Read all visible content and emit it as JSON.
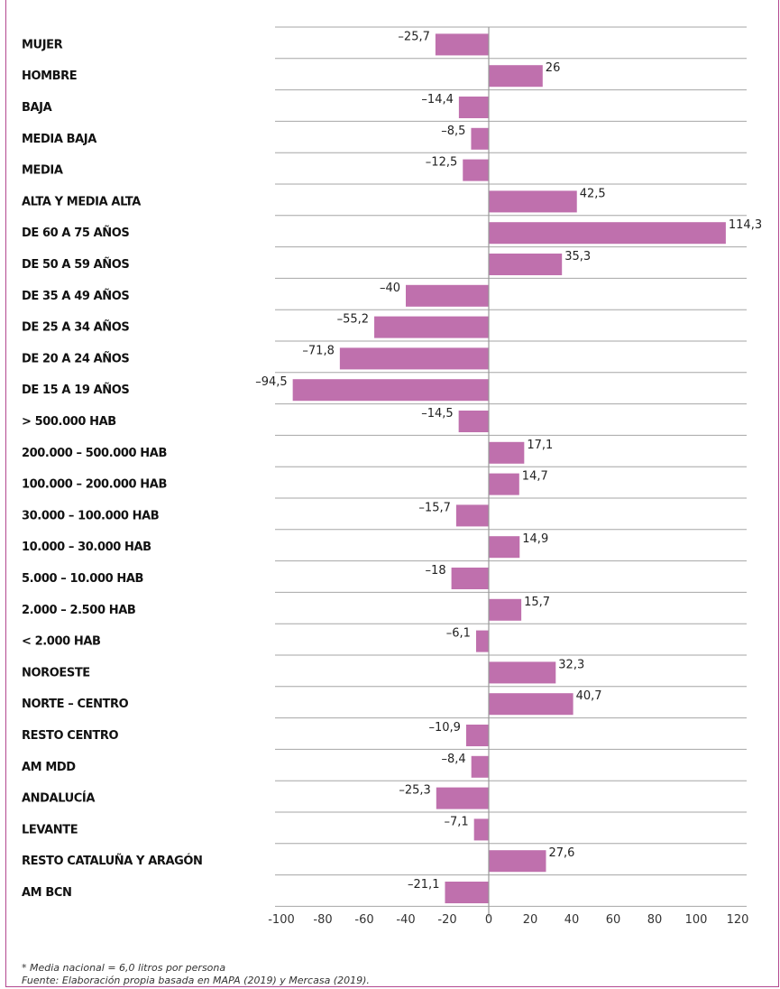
{
  "chart_data": {
    "type": "bar",
    "orientation": "horizontal",
    "categories": [
      "MUJER",
      "HOMBRE",
      "BAJA",
      "MEDIA BAJA",
      "MEDIA",
      "ALTA Y MEDIA ALTA",
      "DE 60 A 75 AÑOS",
      "DE 50 A 59 AÑOS",
      "DE 35 A 49 AÑOS",
      "DE 25 A 34 AÑOS",
      "DE 20 A 24 AÑOS",
      "DE 15 A 19 AÑOS",
      "> 500.000 HAB",
      "200.000 – 500.000 HAB",
      "100.000 – 200.000 HAB",
      "30.000 – 100.000 HAB",
      "10.000 – 30.000 HAB",
      "5.000 – 10.000 HAB",
      "2.000 – 2.500 HAB",
      "< 2.000 HAB",
      "NOROESTE",
      "NORTE – CENTRO",
      "RESTO CENTRO",
      "AM MDD",
      "ANDALUCÍA",
      "LEVANTE",
      "RESTO CATALUÑA Y ARAGÓN",
      "AM BCN"
    ],
    "values": [
      -25.7,
      26,
      -14.4,
      -8.5,
      -12.5,
      42.5,
      114.3,
      35.3,
      -40,
      -55.2,
      -71.8,
      -94.5,
      -14.5,
      17.1,
      14.7,
      -15.7,
      14.9,
      -18,
      15.7,
      -6.1,
      32.3,
      40.7,
      -10.9,
      -8.4,
      -25.3,
      -7.1,
      27.6,
      -21.1
    ],
    "value_labels": [
      "–25,7",
      "26",
      "–14,4",
      "–8,5",
      "–12,5",
      "42,5",
      "114,3",
      "35,3",
      "–40",
      "–55,2",
      "–71,8",
      "–94,5",
      "–14,5",
      "17,1",
      "14,7",
      "–15,7",
      "14,9",
      "–18",
      "15,7",
      "–6,1",
      "32,3",
      "40,7",
      "–10,9",
      "–8,4",
      "–25,3",
      "–7,1",
      "27,6",
      "–21,1"
    ],
    "xlim": [
      -100,
      120
    ],
    "x_ticks": [
      -100,
      -80,
      -60,
      -40,
      -20,
      0,
      20,
      40,
      60,
      80,
      100,
      120
    ],
    "x_tick_labels": [
      "-100",
      "-80",
      "-60",
      "-40",
      "-20",
      "0",
      "20",
      "40",
      "60",
      "80",
      "100",
      "120"
    ],
    "grid": "horizontal",
    "bar_color": "#bf70ad",
    "axis_color": "#999999"
  },
  "footnotes": {
    "note": "* Media nacional = 6,0 litros por persona",
    "source": "Fuente: Elaboración propia basada en MAPA (2019) y Mercasa (2019)."
  }
}
